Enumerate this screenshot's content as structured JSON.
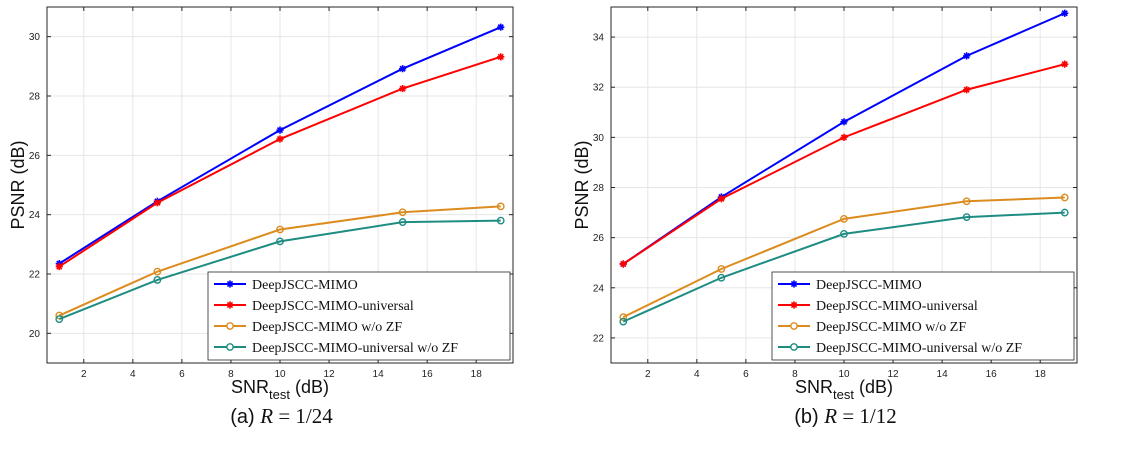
{
  "chart_data": [
    {
      "type": "line",
      "caption_prefix": "(a)",
      "caption_var": "R",
      "caption_rest": "= 1/24",
      "xlabel_main": "SNR",
      "xlabel_sub": "test",
      "xlabel_unit": "(dB)",
      "ylabel": "PSNR (dB)",
      "xlim": [
        0.5,
        19.5
      ],
      "ylim": [
        19,
        31
      ],
      "xticks": [
        2,
        4,
        6,
        8,
        10,
        12,
        14,
        16,
        18
      ],
      "yticks": [
        20,
        22,
        24,
        26,
        28,
        30
      ],
      "grid": true,
      "legend_position": "bottom-right",
      "x": [
        1,
        5,
        10,
        15,
        19
      ],
      "series": [
        {
          "name": "DeepJSCC-MIMO",
          "color": "#0000ff",
          "marker": "star",
          "values": [
            22.35,
            24.45,
            26.85,
            28.92,
            30.32
          ]
        },
        {
          "name": "DeepJSCC-MIMO-universal",
          "color": "#ff0000",
          "marker": "star",
          "values": [
            22.25,
            24.4,
            26.55,
            28.25,
            29.32
          ]
        },
        {
          "name": "DeepJSCC-MIMO w/o ZF",
          "color": "#dc8c1e",
          "marker": "circle",
          "values": [
            20.6,
            22.08,
            23.5,
            24.08,
            24.28
          ]
        },
        {
          "name": "DeepJSCC-MIMO-universal w/o ZF",
          "color": "#1e8c82",
          "marker": "circle",
          "values": [
            20.48,
            21.8,
            23.1,
            23.75,
            23.8
          ]
        }
      ]
    },
    {
      "type": "line",
      "caption_prefix": "(b)",
      "caption_var": "R",
      "caption_rest": "= 1/12",
      "xlabel_main": "SNR",
      "xlabel_sub": "test",
      "xlabel_unit": "(dB)",
      "ylabel": "PSNR (dB)",
      "xlim": [
        0.5,
        19.5
      ],
      "ylim": [
        21,
        35.2
      ],
      "xticks": [
        2,
        4,
        6,
        8,
        10,
        12,
        14,
        16,
        18
      ],
      "yticks": [
        22,
        24,
        26,
        28,
        30,
        32,
        34
      ],
      "grid": true,
      "legend_position": "bottom-right",
      "x": [
        1,
        5,
        10,
        15,
        19
      ],
      "series": [
        {
          "name": "DeepJSCC-MIMO",
          "color": "#0000ff",
          "marker": "star",
          "values": [
            24.95,
            27.62,
            30.62,
            33.25,
            34.95
          ]
        },
        {
          "name": "DeepJSCC-MIMO-universal",
          "color": "#ff0000",
          "marker": "star",
          "values": [
            24.95,
            27.55,
            30.0,
            31.9,
            32.92
          ]
        },
        {
          "name": "DeepJSCC-MIMO w/o ZF",
          "color": "#dc8c1e",
          "marker": "circle",
          "values": [
            22.83,
            24.75,
            26.75,
            27.45,
            27.6
          ]
        },
        {
          "name": "DeepJSCC-MIMO-universal w/o ZF",
          "color": "#1e8c82",
          "marker": "circle",
          "values": [
            22.65,
            24.4,
            26.15,
            26.82,
            27.0
          ]
        }
      ]
    }
  ]
}
